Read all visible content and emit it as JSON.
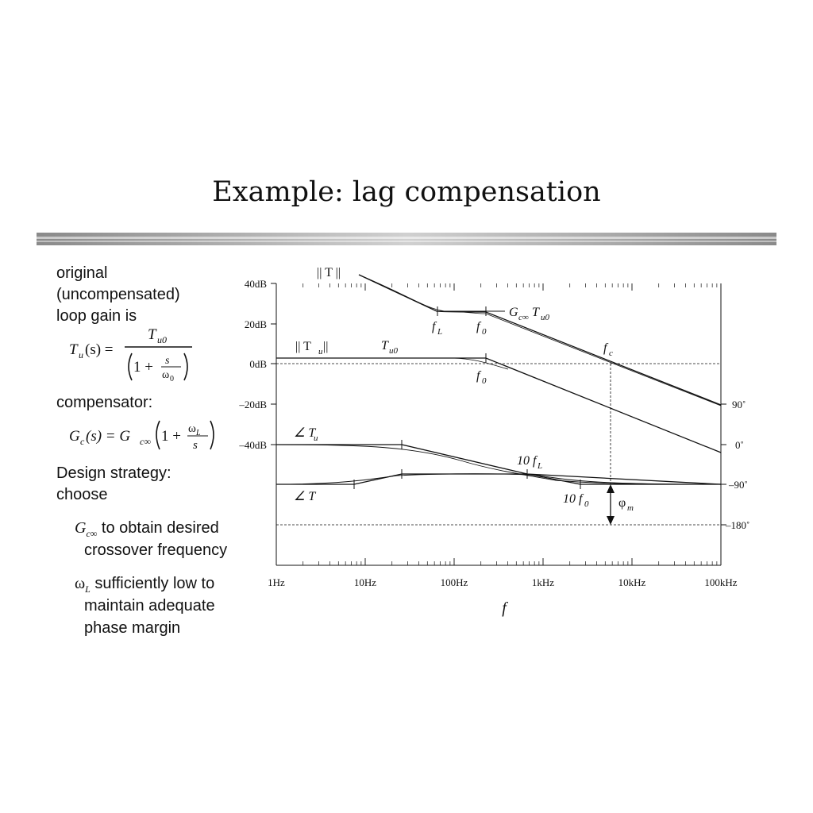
{
  "slide": {
    "title": "Example: lag compensation",
    "text": {
      "original": "original\n(uncompensated)\nloop gain is",
      "tu_eq": "T",
      "tu_sub": "u",
      "tu_arg": "(s) =",
      "tu0": "T",
      "tu0_sub": "u0",
      "one_plus": "1 +",
      "s": "s",
      "omega0": "ω",
      "omega0_sub": "0",
      "compensator": "compensator:",
      "gc": "G",
      "gc_sub": "c",
      "gc_arg": "(s) = G",
      "gc_inf": "c∞",
      "omegaL": "ω",
      "omegaL_sub": "L",
      "design": "Design strategy:\nchoose",
      "bullet1_sym": "G",
      "bullet1_sub": "c∞",
      "bullet1_text": " to obtain desired",
      "bullet1_line2": "crossover frequency",
      "bullet2_sym": "ω",
      "bullet2_sub": "L",
      "bullet2_text": " sufficiently low to",
      "bullet2_line2": "maintain adequate",
      "bullet2_line3": "phase margin"
    }
  },
  "plot": {
    "mag_ticks": [
      "40dB",
      "20dB",
      "0dB",
      "–20dB",
      "–40dB"
    ],
    "phase_ticks": [
      "90˚",
      "0˚",
      "–90˚",
      "–180˚"
    ],
    "freq_ticks": [
      "1Hz",
      "10Hz",
      "100Hz",
      "1kHz",
      "10kHz",
      "100kHz"
    ],
    "xlabel": "f",
    "labels": {
      "T_mag": "|| T ||",
      "Tu_mag": "|| T",
      "Tu_mag_sub": "u",
      "Tu_mag_end": " ||",
      "Tu0": "T",
      "Tu0_sub": "u0",
      "GcTu0": "G",
      "GcTu0_sub": "c∞",
      "GcTu0_T": "T",
      "GcTu0_sub2": "u0",
      "fL": "f",
      "fL_sub": "L",
      "f0_top": "f",
      "f0_top_sub": "0",
      "f0_mid": "f",
      "f0_mid_sub": "0",
      "fc": "f",
      "fc_sub": "c",
      "angle_Tu": "∠ T",
      "angle_Tu_sub": "u",
      "angle_T": "∠ T",
      "tenfL": "10 f",
      "tenfL_sub": "L",
      "tenf0": "10 f",
      "tenf0_sub": "0",
      "phim": "φ",
      "phim_sub": "m"
    }
  }
}
